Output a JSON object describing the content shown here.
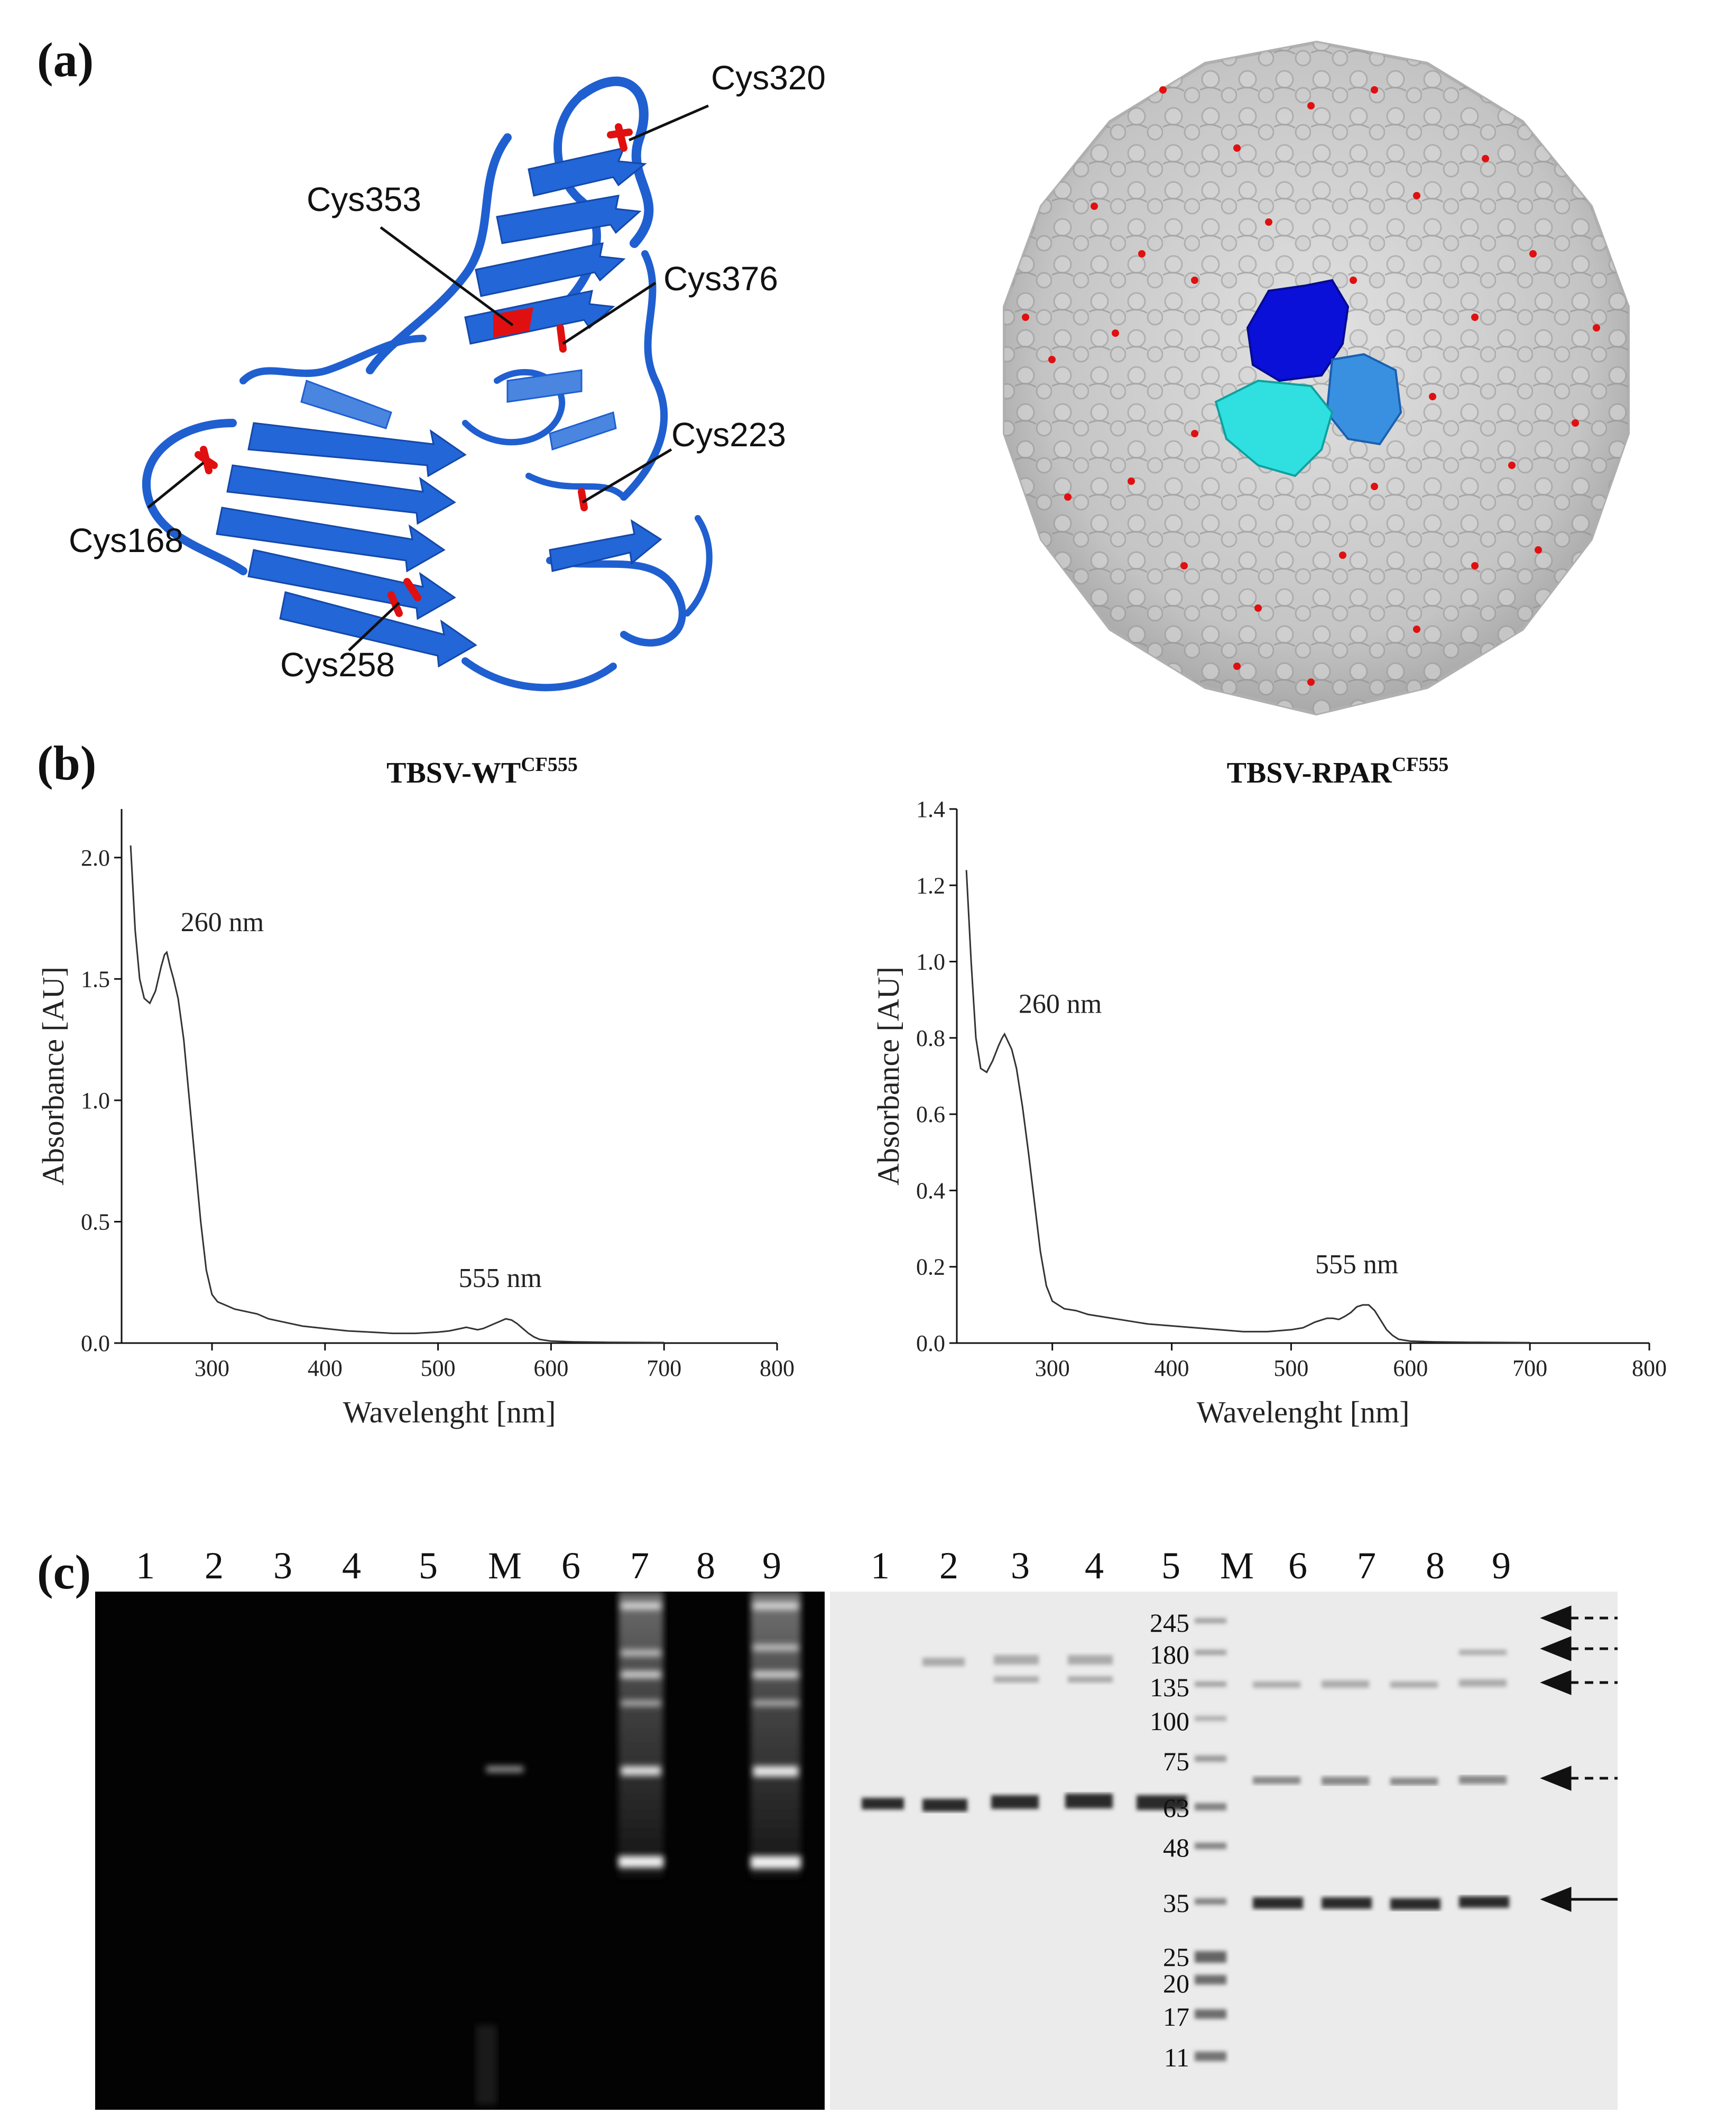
{
  "panels": {
    "a": "(a)",
    "b": "(b)",
    "c": "(c)"
  },
  "structure": {
    "cys_labels": [
      "Cys320",
      "Cys353",
      "Cys376",
      "Cys223",
      "Cys168",
      "Cys258"
    ],
    "colors": {
      "protein": "#1f5fd0",
      "cysteine": "#e01010",
      "capsid_gray": "#c9c9c9",
      "subunit_dark": "#0a10d8",
      "subunit_light": "#3a90e0",
      "subunit_cyan": "#30e0e0"
    }
  },
  "chart_data": [
    {
      "type": "line",
      "title": "TBSV-WT",
      "title_sup": "CF555",
      "xlabel": "Wavelenght [nm]",
      "ylabel": "Absorbance [AU]",
      "xlim": [
        220,
        800
      ],
      "ylim": [
        0,
        2.2
      ],
      "xticks": [
        "300",
        "400",
        "500",
        "600",
        "700",
        "800"
      ],
      "yticks": [
        "0.0",
        "0.5",
        "1.0",
        "1.5",
        "2.0"
      ],
      "annotations": [
        "260 nm",
        "555 nm"
      ],
      "x": [
        228,
        232,
        236,
        240,
        245,
        250,
        255,
        258,
        260,
        263,
        266,
        270,
        275,
        280,
        285,
        290,
        295,
        300,
        305,
        310,
        320,
        330,
        340,
        350,
        360,
        380,
        400,
        420,
        440,
        460,
        480,
        500,
        510,
        520,
        525,
        530,
        535,
        540,
        545,
        550,
        555,
        560,
        565,
        570,
        575,
        580,
        585,
        590,
        600,
        620,
        650,
        700
      ],
      "y": [
        2.05,
        1.7,
        1.5,
        1.42,
        1.4,
        1.45,
        1.55,
        1.6,
        1.61,
        1.55,
        1.5,
        1.42,
        1.25,
        1.0,
        0.75,
        0.5,
        0.3,
        0.2,
        0.17,
        0.16,
        0.14,
        0.13,
        0.12,
        0.1,
        0.09,
        0.07,
        0.06,
        0.05,
        0.045,
        0.04,
        0.04,
        0.045,
        0.05,
        0.06,
        0.065,
        0.06,
        0.055,
        0.06,
        0.07,
        0.08,
        0.09,
        0.1,
        0.095,
        0.08,
        0.06,
        0.04,
        0.025,
        0.015,
        0.008,
        0.005,
        0.003,
        0.002
      ]
    },
    {
      "type": "line",
      "title": "TBSV-RPAR",
      "title_sup": "CF555",
      "xlabel": "Wavelenght [nm]",
      "ylabel": "Absorbance [AU]",
      "xlim": [
        220,
        800
      ],
      "ylim": [
        0,
        1.4
      ],
      "xticks": [
        "300",
        "400",
        "500",
        "600",
        "700",
        "800"
      ],
      "yticks": [
        "0.0",
        "0.2",
        "0.4",
        "0.6",
        "0.8",
        "1.0",
        "1.2",
        "1.4"
      ],
      "annotations": [
        "260 nm",
        "555 nm"
      ],
      "x": [
        228,
        232,
        236,
        240,
        245,
        250,
        255,
        258,
        260,
        263,
        266,
        270,
        275,
        280,
        285,
        290,
        295,
        300,
        305,
        310,
        320,
        330,
        340,
        350,
        360,
        380,
        400,
        420,
        440,
        460,
        480,
        500,
        510,
        520,
        525,
        530,
        535,
        540,
        545,
        550,
        555,
        560,
        565,
        570,
        575,
        580,
        585,
        590,
        600,
        620,
        650,
        700
      ],
      "y": [
        1.24,
        1.0,
        0.8,
        0.72,
        0.71,
        0.74,
        0.78,
        0.8,
        0.81,
        0.79,
        0.77,
        0.72,
        0.62,
        0.5,
        0.37,
        0.24,
        0.15,
        0.11,
        0.1,
        0.09,
        0.085,
        0.075,
        0.07,
        0.065,
        0.06,
        0.05,
        0.045,
        0.04,
        0.035,
        0.03,
        0.03,
        0.035,
        0.04,
        0.055,
        0.06,
        0.065,
        0.065,
        0.062,
        0.07,
        0.08,
        0.095,
        0.1,
        0.1,
        0.085,
        0.06,
        0.035,
        0.02,
        0.01,
        0.005,
        0.003,
        0.002,
        0.001
      ]
    }
  ],
  "gels": {
    "left_lanes": [
      "1",
      "2",
      "3",
      "4",
      "5",
      "M",
      "6",
      "7",
      "8",
      "9"
    ],
    "right_lanes": [
      "1",
      "2",
      "3",
      "4",
      "5",
      "M",
      "6",
      "7",
      "8",
      "9"
    ],
    "mw_markers": [
      "245",
      "180",
      "135",
      "100",
      "75",
      "63",
      "48",
      "35",
      "25",
      "20",
      "17",
      "11"
    ]
  }
}
